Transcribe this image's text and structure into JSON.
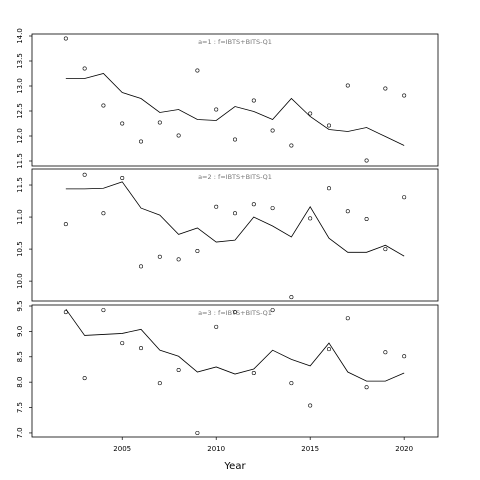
{
  "chart_data": [
    {
      "type": "scatter",
      "title": "a=1 : f=IBTS+BITS-Q1",
      "x": [
        2002,
        2003,
        2004,
        2005,
        2006,
        2007,
        2008,
        2009,
        2010,
        2011,
        2012,
        2013,
        2014,
        2015,
        2016,
        2017,
        2018,
        2019,
        2020
      ],
      "series": [
        {
          "style": "points",
          "color": "#000000",
          "values": [
            13.95,
            13.35,
            12.61,
            12.25,
            11.89,
            12.27,
            12.01,
            13.31,
            12.53,
            11.93,
            12.71,
            12.11,
            11.81,
            12.45,
            12.21,
            13.01,
            11.51,
            12.95,
            12.81
          ]
        },
        {
          "style": "line",
          "color": "#000000",
          "values": [
            13.15,
            13.15,
            13.25,
            12.87,
            12.75,
            12.47,
            12.53,
            12.33,
            12.31,
            12.59,
            12.49,
            12.33,
            12.75,
            12.39,
            12.13,
            12.09,
            12.17,
            11.99,
            11.81
          ]
        }
      ],
      "xlim": [
        2000.2,
        2021.8
      ],
      "ylim": [
        11.4,
        14.04
      ],
      "yticks": [
        11.5,
        {
          "value": 12,
          "label": "12.0"
        },
        12.5,
        {
          "value": 13,
          "label": "13.0"
        },
        13.5,
        {
          "value": 14,
          "label": "14.0"
        }
      ]
    },
    {
      "type": "scatter",
      "title": "a=2 : f=IBTS+BITS-Q1",
      "x": [
        2002,
        2003,
        2004,
        2005,
        2006,
        2007,
        2008,
        2009,
        2010,
        2011,
        2012,
        2013,
        2014,
        2015,
        2016,
        2017,
        2018,
        2019,
        2020
      ],
      "series": [
        {
          "style": "points",
          "color": "#000000",
          "values": [
            10.89,
            11.66,
            11.06,
            11.61,
            10.23,
            10.38,
            10.34,
            10.47,
            11.16,
            11.06,
            11.2,
            11.14,
            9.75,
            10.98,
            11.45,
            11.09,
            10.97,
            10.5,
            11.31
          ]
        },
        {
          "style": "line",
          "color": "#000000",
          "values": [
            11.44,
            11.44,
            11.45,
            11.55,
            11.14,
            11.03,
            10.73,
            10.83,
            10.61,
            10.64,
            11.0,
            10.86,
            10.69,
            11.16,
            10.67,
            10.45,
            10.45,
            10.56,
            10.39
          ]
        }
      ],
      "xlim": [
        2000.2,
        2021.8
      ],
      "ylim": [
        9.69,
        11.75
      ],
      "yticks": [
        {
          "value": 10,
          "label": "10.0"
        },
        10.5,
        {
          "value": 11,
          "label": "11.0"
        },
        11.5
      ]
    },
    {
      "type": "scatter",
      "title": "a=3 : f=IBTS+BITS-Q1",
      "x": [
        2002,
        2003,
        2004,
        2005,
        2006,
        2007,
        2008,
        2009,
        2010,
        2011,
        2012,
        2013,
        2014,
        2015,
        2016,
        2017,
        2018,
        2019,
        2020
      ],
      "series": [
        {
          "style": "points",
          "color": "#000000",
          "values": [
            9.38,
            8.08,
            9.42,
            8.77,
            8.67,
            7.98,
            8.24,
            7.0,
            9.09,
            9.38,
            8.18,
            9.42,
            7.98,
            7.54,
            8.65,
            9.26,
            7.9,
            8.59,
            8.51
          ]
        },
        {
          "style": "line",
          "color": "#000000",
          "values": [
            9.44,
            8.92,
            8.94,
            8.96,
            9.04,
            8.63,
            8.51,
            8.2,
            8.3,
            8.16,
            8.26,
            8.63,
            8.45,
            8.32,
            8.77,
            8.2,
            8.02,
            8.02,
            8.18
          ]
        }
      ],
      "xlim": [
        2000.2,
        2021.8
      ],
      "ylim": [
        6.92,
        9.52
      ],
      "yticks": [
        {
          "value": 7,
          "label": "7.0"
        },
        7.5,
        {
          "value": 8,
          "label": "8.0"
        },
        8.5,
        {
          "value": 9,
          "label": "9.0"
        },
        9.5
      ],
      "xticks": [
        2005,
        2010,
        2015,
        2020
      ],
      "xlabel": "Year"
    }
  ]
}
